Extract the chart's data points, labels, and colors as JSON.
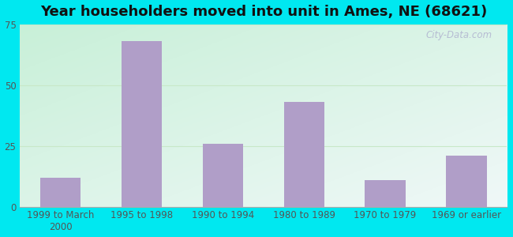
{
  "title": "Year householders moved into unit in Ames, NE (68621)",
  "categories": [
    "1999 to March\n2000",
    "1995 to 1998",
    "1990 to 1994",
    "1980 to 1989",
    "1970 to 1979",
    "1969 or earlier"
  ],
  "values": [
    12,
    68,
    26,
    43,
    11,
    21
  ],
  "bar_color": "#b09ec8",
  "background_outer": "#00e8f0",
  "bg_color_green": "#c8f0d8",
  "bg_color_white": "#f0f8f8",
  "grid_color": "#c8e8c8",
  "ylim": [
    0,
    75
  ],
  "yticks": [
    0,
    25,
    50,
    75
  ],
  "watermark": "City-Data.com",
  "title_fontsize": 13,
  "tick_fontsize": 8.5,
  "bar_width": 0.5
}
